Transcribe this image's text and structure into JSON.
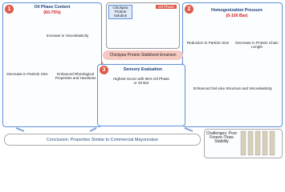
{
  "panels": [
    {
      "number": "1",
      "title": "Oil Phase Content",
      "subtitle": "(60-75%)",
      "findings": [
        "Increase in Viscoelasticity",
        "Decrease in Particle Size",
        "Enhanced Rheological Properties and Hardness"
      ]
    },
    {
      "number": "2",
      "title": "Homogenization Pressure",
      "subtitle": "(0-100 Bar)",
      "findings": [
        "Reduction in Particle Size",
        "Decrease in Protein Chain Length",
        "Enhanced Gel-Like Structure and Viscoelasticity"
      ]
    },
    {
      "number": "3",
      "title": "Sensory Evaluation",
      "findings": [
        "Highest Score with 65% Oil Phase or 40 Bar"
      ]
    }
  ],
  "ingredients": [
    "Chickpea Protein Solution",
    "Oil Phase"
  ],
  "emulsion": "Chickpea Protein Stabilized Emulsion",
  "conclusion": "Conclusion: Properties Similar to Commercial Mayonnaise",
  "challenges": "Challenges: Poor Freeze-Thaw Stability"
}
